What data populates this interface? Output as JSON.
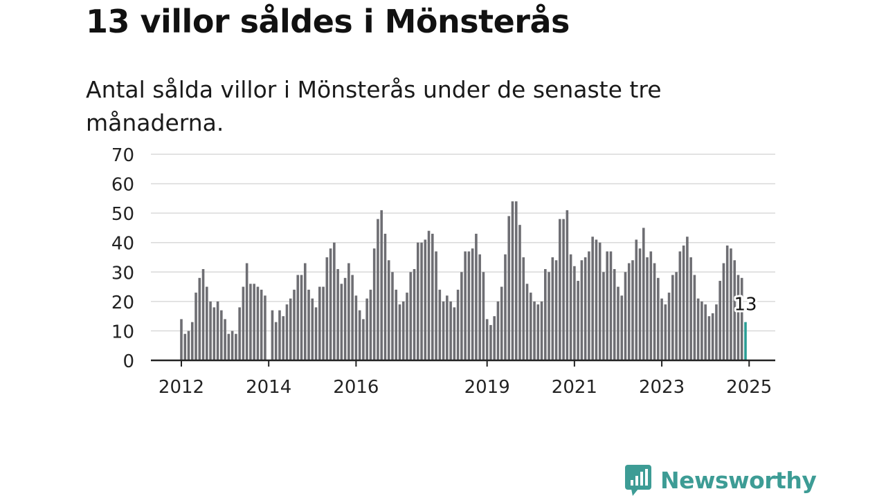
{
  "title": "13 villor såldes i Mönsterås",
  "subtitle": "Antal sålda villor i Mönsterås under de senaste tre månaderna.",
  "brand": {
    "name": "Newsworthy",
    "logo_icon": "bar-chart-bubble-icon",
    "color": "#3d9c95"
  },
  "chart_data": {
    "type": "bar",
    "title": "13 villor såldes i Mönsterås",
    "subtitle": "Antal sålda villor i Mönsterås under de senaste tre månaderna.",
    "xlabel": "",
    "ylabel": "",
    "ylim": [
      0,
      70
    ],
    "yticks": [
      "0",
      "10",
      "20",
      "30",
      "40",
      "50",
      "60",
      "70"
    ],
    "grid": true,
    "x_axis": "monthly, 2012-01 to 2025-01",
    "xtick_labels": [
      "2012",
      "2014",
      "2016",
      "2019",
      "2021",
      "2023",
      "2025"
    ],
    "bar_color": "#6e6e73",
    "highlight_color": "#2a9d94",
    "highlight_label": "13",
    "series": [
      {
        "values": [
          14,
          9,
          10,
          13,
          23,
          28,
          31,
          25,
          20,
          18,
          20,
          17,
          14,
          9,
          10,
          9,
          18,
          25,
          33,
          26,
          26,
          25,
          24,
          22,
          null,
          17,
          13,
          17,
          15,
          19,
          21,
          24,
          29,
          29,
          33,
          24,
          21,
          18,
          25,
          25,
          35,
          38,
          40,
          31,
          26,
          28,
          33,
          29,
          22,
          17,
          14,
          21,
          24,
          38,
          48,
          51,
          43,
          34,
          30,
          24,
          19,
          20,
          23,
          30,
          31,
          40,
          40,
          41,
          44,
          43,
          37,
          24,
          20,
          22,
          20,
          18,
          24,
          30,
          37,
          37,
          38,
          43,
          36,
          30,
          14,
          12,
          15,
          20,
          25,
          36,
          49,
          54,
          54,
          46,
          35,
          26,
          23,
          20,
          19,
          20,
          31,
          30,
          35,
          34,
          48,
          48,
          51,
          36,
          32,
          27,
          34,
          35,
          37,
          42,
          41,
          40,
          30,
          37,
          37,
          31,
          25,
          22,
          30,
          33,
          34,
          41,
          38,
          45,
          35,
          37,
          33,
          28,
          21,
          19,
          23,
          29,
          30,
          37,
          39,
          42,
          35,
          29,
          21,
          20,
          19,
          15,
          16,
          19,
          27,
          33,
          39,
          38,
          34,
          29,
          28,
          13
        ]
      }
    ]
  }
}
